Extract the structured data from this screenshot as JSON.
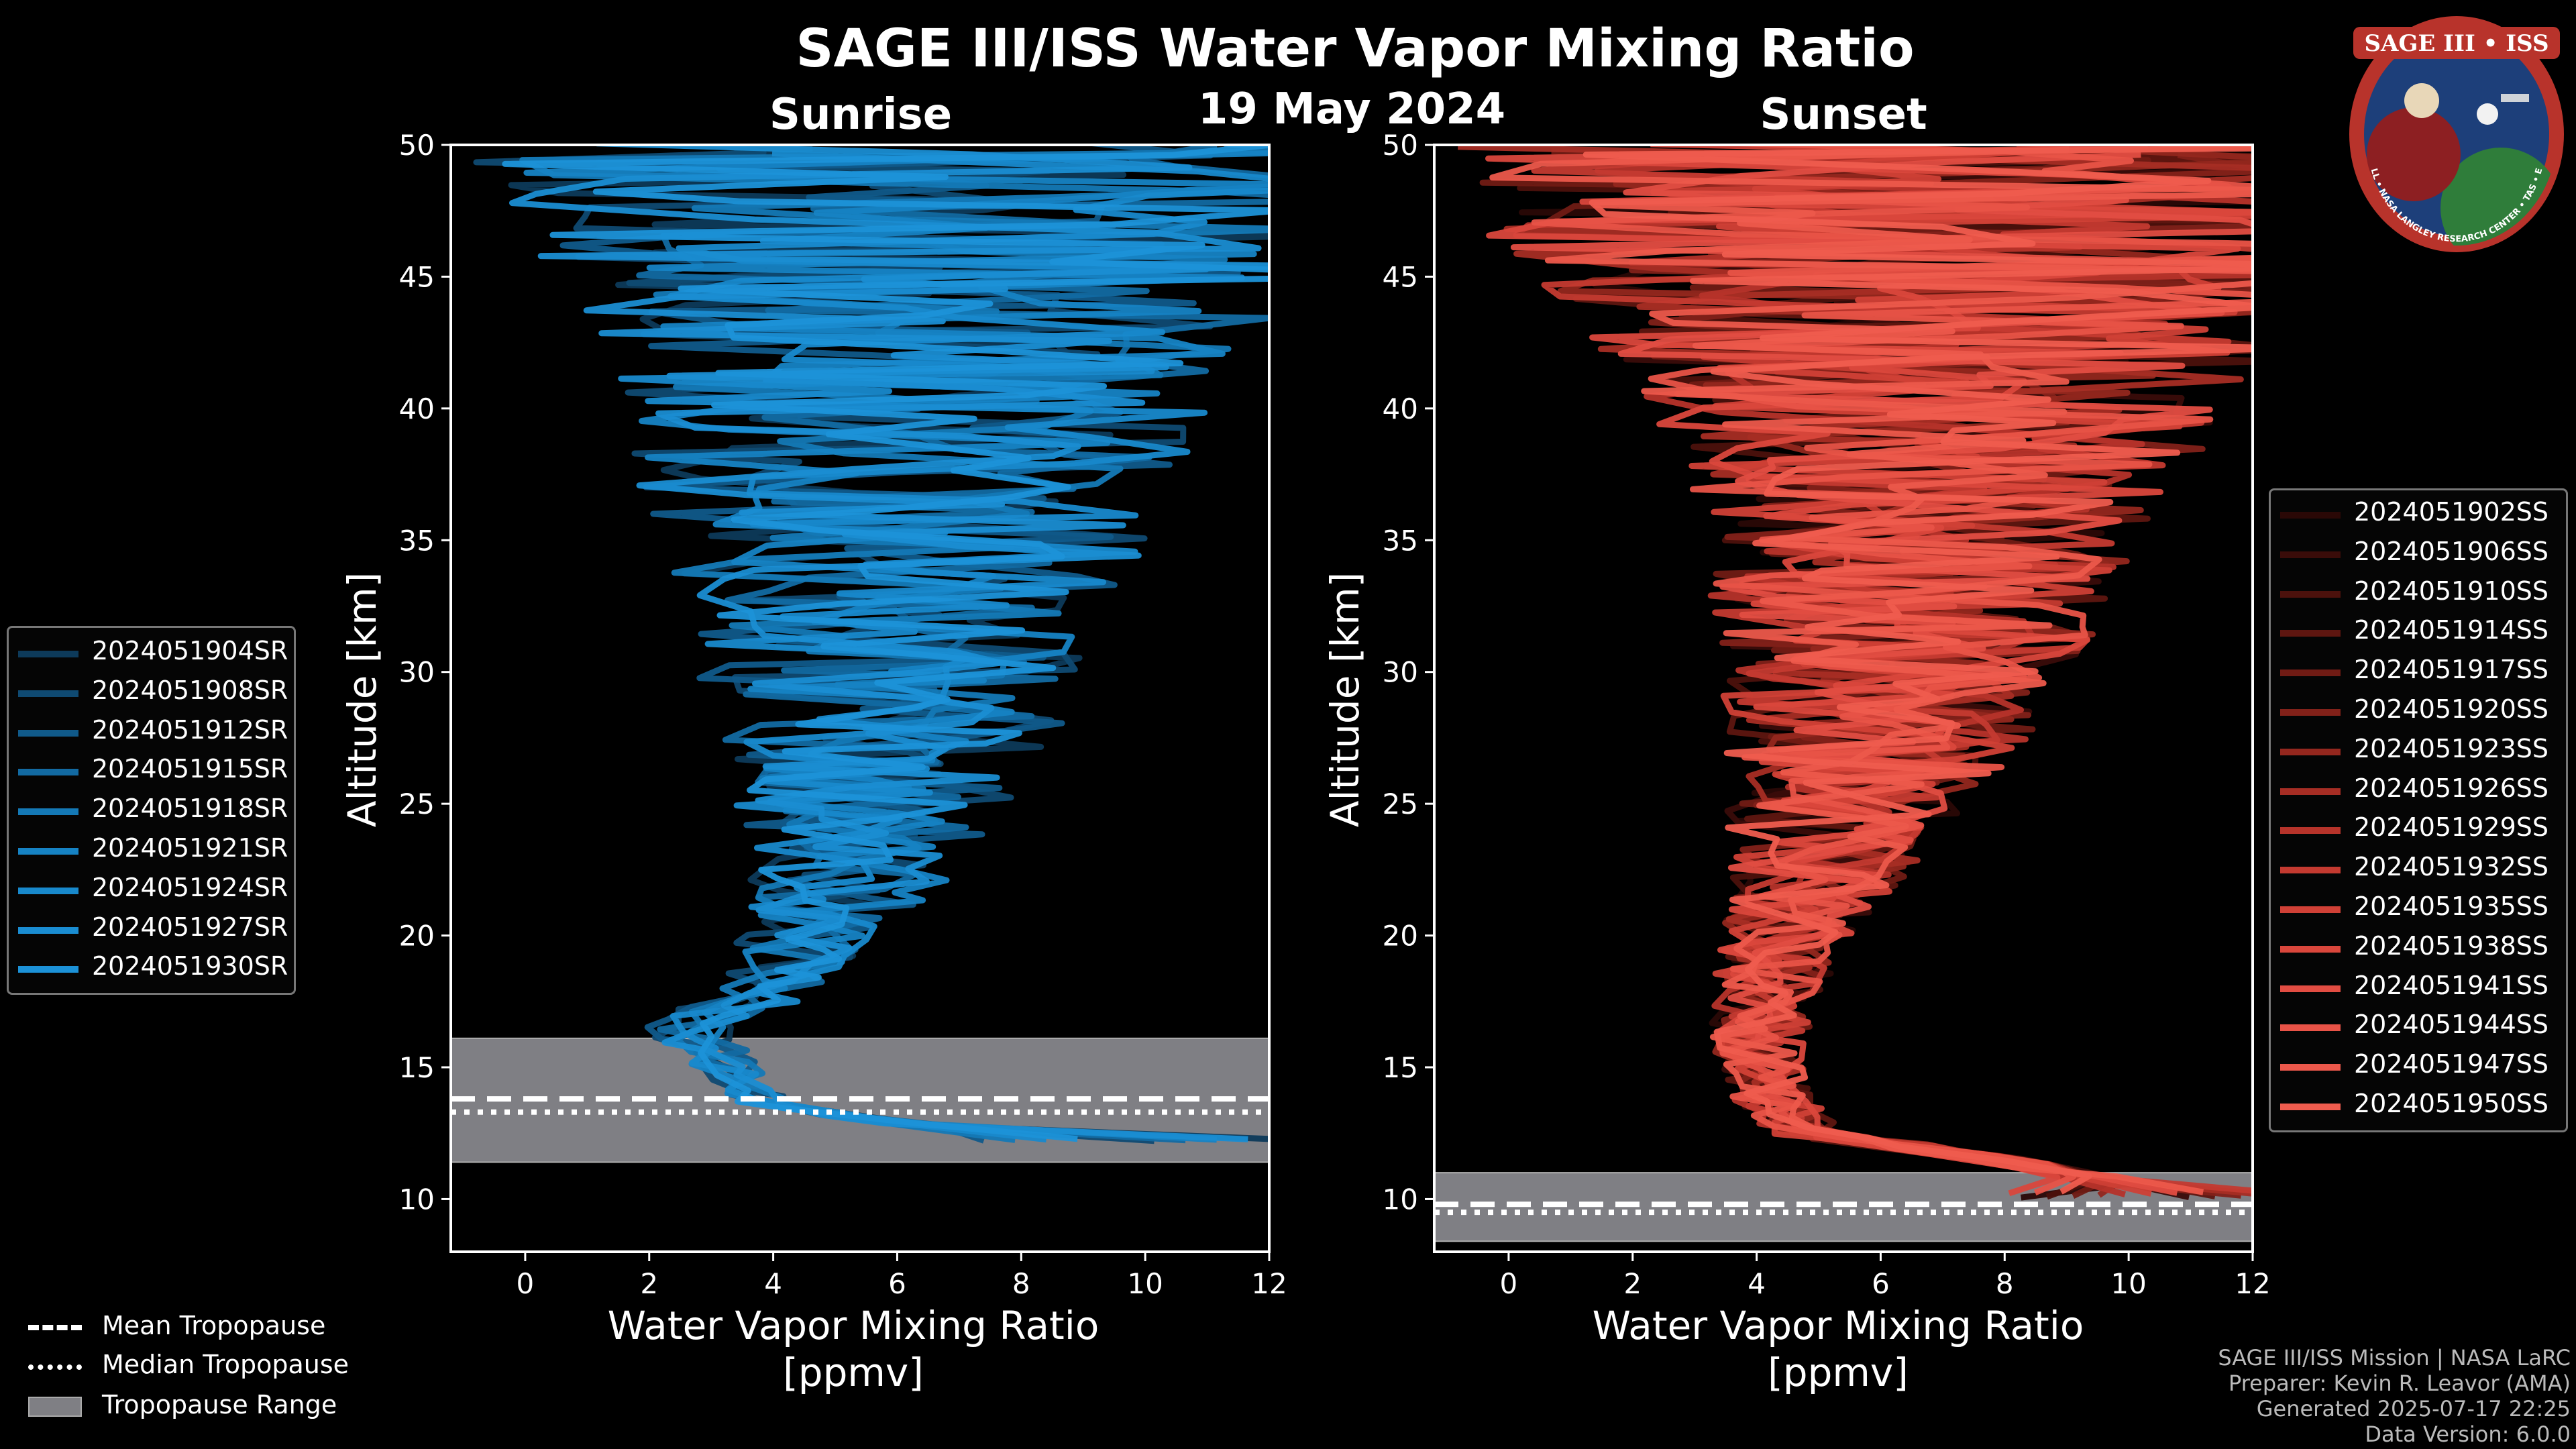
{
  "title": "SAGE III/ISS Water Vapor Mixing Ratio",
  "date": "19 May 2024",
  "logo": {
    "top_text": "SAGE III • ISS",
    "ring_text": "BALL • NASA LANGLEY RESEARCH CENTER • TAS • ESA"
  },
  "credits": {
    "line1": "SAGE III/ISS Mission | NASA LaRC",
    "line2": "Preparer: Kevin R. Leavor (AMA)",
    "line3": "Generated 2025-07-17 22:25",
    "line4": "Data Version: 6.0.0"
  },
  "tropopause_legend": {
    "mean": "Mean Tropopause",
    "median": "Median Tropopause",
    "range": "Tropopause Range"
  },
  "chart_data": [
    {
      "type": "line",
      "panel": "left",
      "subtitle": "Sunrise",
      "xlabel": "Water Vapor Mixing Ratio\n[ppmv]",
      "ylabel": "Altitude [km]",
      "xlim": [
        -1.2,
        12
      ],
      "ylim": [
        8,
        50
      ],
      "xticks": [
        0,
        2,
        4,
        6,
        8,
        10,
        12
      ],
      "yticks": [
        10,
        15,
        20,
        25,
        30,
        35,
        40,
        45,
        50
      ],
      "tropopause": {
        "mean": 13.8,
        "median": 13.3,
        "range": [
          11.4,
          16.1
        ]
      },
      "color_base": "#1e8fd0",
      "series": [
        {
          "name": "2024051904SR",
          "color": "#0d3a5a"
        },
        {
          "name": "2024051908SR",
          "color": "#0f4a72"
        },
        {
          "name": "2024051912SR",
          "color": "#105a8a"
        },
        {
          "name": "2024051915SR",
          "color": "#126aa2"
        },
        {
          "name": "2024051918SR",
          "color": "#1479b6"
        },
        {
          "name": "2024051921SR",
          "color": "#1683c4"
        },
        {
          "name": "2024051924SR",
          "color": "#1889cc"
        },
        {
          "name": "2024051927SR",
          "color": "#1a8dd2"
        },
        {
          "name": "2024051930SR",
          "color": "#1c92d8"
        }
      ],
      "mean_profile": [
        [
          5.0,
          11.5
        ],
        [
          7.5,
          12.5
        ],
        [
          4.0,
          13.5
        ],
        [
          3.0,
          15.5
        ],
        [
          2.6,
          16.5
        ],
        [
          4.0,
          18
        ],
        [
          4.5,
          20
        ],
        [
          5.2,
          22
        ],
        [
          5.5,
          25
        ],
        [
          5.8,
          28
        ],
        [
          5.9,
          30
        ],
        [
          6.0,
          33
        ],
        [
          6.1,
          35
        ],
        [
          6.2,
          38
        ],
        [
          6.3,
          40
        ],
        [
          6.5,
          43
        ],
        [
          6.5,
          46
        ],
        [
          6.5,
          50
        ]
      ],
      "spread_profile": [
        [
          0.3,
          11.5
        ],
        [
          0.5,
          14
        ],
        [
          0.8,
          17
        ],
        [
          1.2,
          20
        ],
        [
          1.8,
          23
        ],
        [
          2.5,
          26
        ],
        [
          3.2,
          30
        ],
        [
          3.8,
          34
        ],
        [
          4.5,
          38
        ],
        [
          5.3,
          42
        ],
        [
          6.5,
          46
        ],
        [
          7.5,
          50
        ]
      ]
    },
    {
      "type": "line",
      "panel": "right",
      "subtitle": "Sunset",
      "xlabel": "Water Vapor Mixing Ratio\n[ppmv]",
      "ylabel": "Altitude [km]",
      "xlim": [
        -1.2,
        12
      ],
      "ylim": [
        8,
        50
      ],
      "xticks": [
        0,
        2,
        4,
        6,
        8,
        10,
        12
      ],
      "yticks": [
        10,
        15,
        20,
        25,
        30,
        35,
        40,
        45,
        50
      ],
      "tropopause": {
        "mean": 9.8,
        "median": 9.5,
        "range": [
          8.4,
          11.0
        ]
      },
      "color_base": "#ee5a48",
      "series": [
        {
          "name": "2024051902SS",
          "color": "#2a0806"
        },
        {
          "name": "2024051906SS",
          "color": "#3a0c09"
        },
        {
          "name": "2024051910SS",
          "color": "#4c110c"
        },
        {
          "name": "2024051914SS",
          "color": "#5e1610"
        },
        {
          "name": "2024051917SS",
          "color": "#701b14"
        },
        {
          "name": "2024051920SS",
          "color": "#822119"
        },
        {
          "name": "2024051923SS",
          "color": "#94271e"
        },
        {
          "name": "2024051926SS",
          "color": "#a62d24"
        },
        {
          "name": "2024051929SS",
          "color": "#b6332a"
        },
        {
          "name": "2024051932SS",
          "color": "#c43a30"
        },
        {
          "name": "2024051935SS",
          "color": "#d04036"
        },
        {
          "name": "2024051938SS",
          "color": "#da473c"
        },
        {
          "name": "2024051941SS",
          "color": "#e24d42"
        },
        {
          "name": "2024051944SS",
          "color": "#e85347"
        },
        {
          "name": "2024051947SS",
          "color": "#ec584b"
        },
        {
          "name": "2024051950SS",
          "color": "#ef5c4e"
        }
      ],
      "mean_profile": [
        [
          11.0,
          9.0
        ],
        [
          10.0,
          10.5
        ],
        [
          8.0,
          11.5
        ],
        [
          4.8,
          12.5
        ],
        [
          4.2,
          14
        ],
        [
          4.0,
          16
        ],
        [
          4.2,
          18
        ],
        [
          4.5,
          20
        ],
        [
          5.0,
          22
        ],
        [
          5.5,
          25
        ],
        [
          6.0,
          28
        ],
        [
          6.3,
          30
        ],
        [
          6.5,
          33
        ],
        [
          6.8,
          36
        ],
        [
          7.0,
          40
        ],
        [
          7.0,
          44
        ],
        [
          7.0,
          50
        ]
      ],
      "spread_profile": [
        [
          0.5,
          9
        ],
        [
          0.6,
          12
        ],
        [
          0.7,
          15
        ],
        [
          0.9,
          18
        ],
        [
          1.2,
          21
        ],
        [
          1.8,
          24
        ],
        [
          2.4,
          27
        ],
        [
          3.0,
          31
        ],
        [
          3.5,
          35
        ],
        [
          4.2,
          38
        ],
        [
          5.5,
          42
        ],
        [
          7.5,
          46
        ],
        [
          8.0,
          50
        ]
      ]
    }
  ]
}
